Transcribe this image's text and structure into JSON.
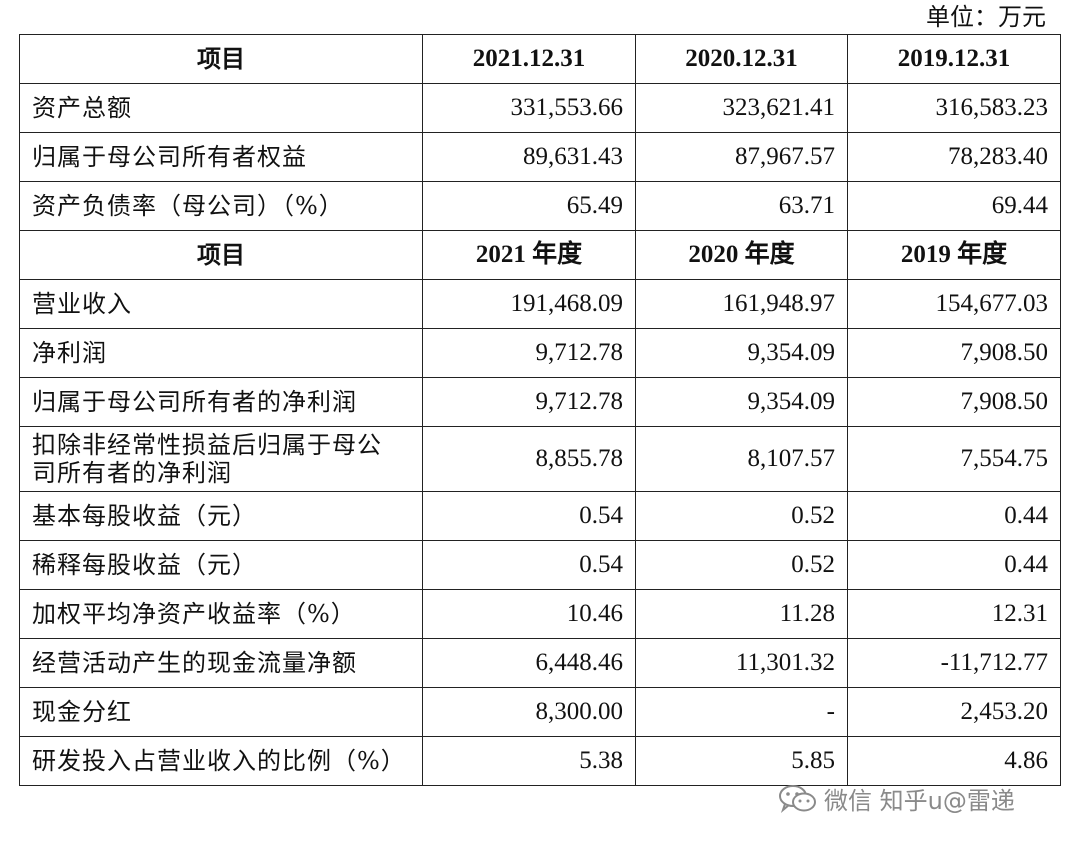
{
  "unit_label": "单位：万元",
  "balance": {
    "headers": [
      "项目",
      "2021.12.31",
      "2020.12.31",
      "2019.12.31"
    ],
    "rows": [
      {
        "label": "资产总额",
        "values": [
          "331,553.66",
          "323,621.41",
          "316,583.23"
        ]
      },
      {
        "label": "归属于母公司所有者权益",
        "values": [
          "89,631.43",
          "87,967.57",
          "78,283.40"
        ]
      },
      {
        "label": "资产负债率（母公司）（%）",
        "values": [
          "65.49",
          "63.71",
          "69.44"
        ]
      }
    ]
  },
  "income": {
    "headers": [
      "项目",
      "2021 年度",
      "2020 年度",
      "2019 年度"
    ],
    "rows": [
      {
        "label": "营业收入",
        "values": [
          "191,468.09",
          "161,948.97",
          "154,677.03"
        ]
      },
      {
        "label": "净利润",
        "values": [
          "9,712.78",
          "9,354.09",
          "7,908.50"
        ]
      },
      {
        "label": "归属于母公司所有者的净利润",
        "values": [
          "9,712.78",
          "9,354.09",
          "7,908.50"
        ]
      },
      {
        "label": "扣除非经常性损益后归属于母公司所有者的净利润",
        "label_line1": "扣除非经常性损益后归属于母公",
        "label_line2": "司所有者的净利润",
        "values": [
          "8,855.78",
          "8,107.57",
          "7,554.75"
        ]
      },
      {
        "label": "基本每股收益（元）",
        "values": [
          "0.54",
          "0.52",
          "0.44"
        ]
      },
      {
        "label": "稀释每股收益（元）",
        "values": [
          "0.54",
          "0.52",
          "0.44"
        ]
      },
      {
        "label": "加权平均净资产收益率（%）",
        "values": [
          "10.46",
          "11.28",
          "12.31"
        ]
      },
      {
        "label": "经营活动产生的现金流量净额",
        "values": [
          "6,448.46",
          "11,301.32",
          "-11,712.77"
        ]
      },
      {
        "label": "现金分红",
        "values": [
          "8,300.00",
          "-",
          "2,453.20"
        ]
      },
      {
        "label": "研发投入占营业收入的比例（%）",
        "values": [
          "5.38",
          "5.85",
          "4.86"
        ]
      }
    ]
  },
  "watermark": {
    "text": "微信 知乎u@雷递",
    "icon": "wechat-icon"
  }
}
